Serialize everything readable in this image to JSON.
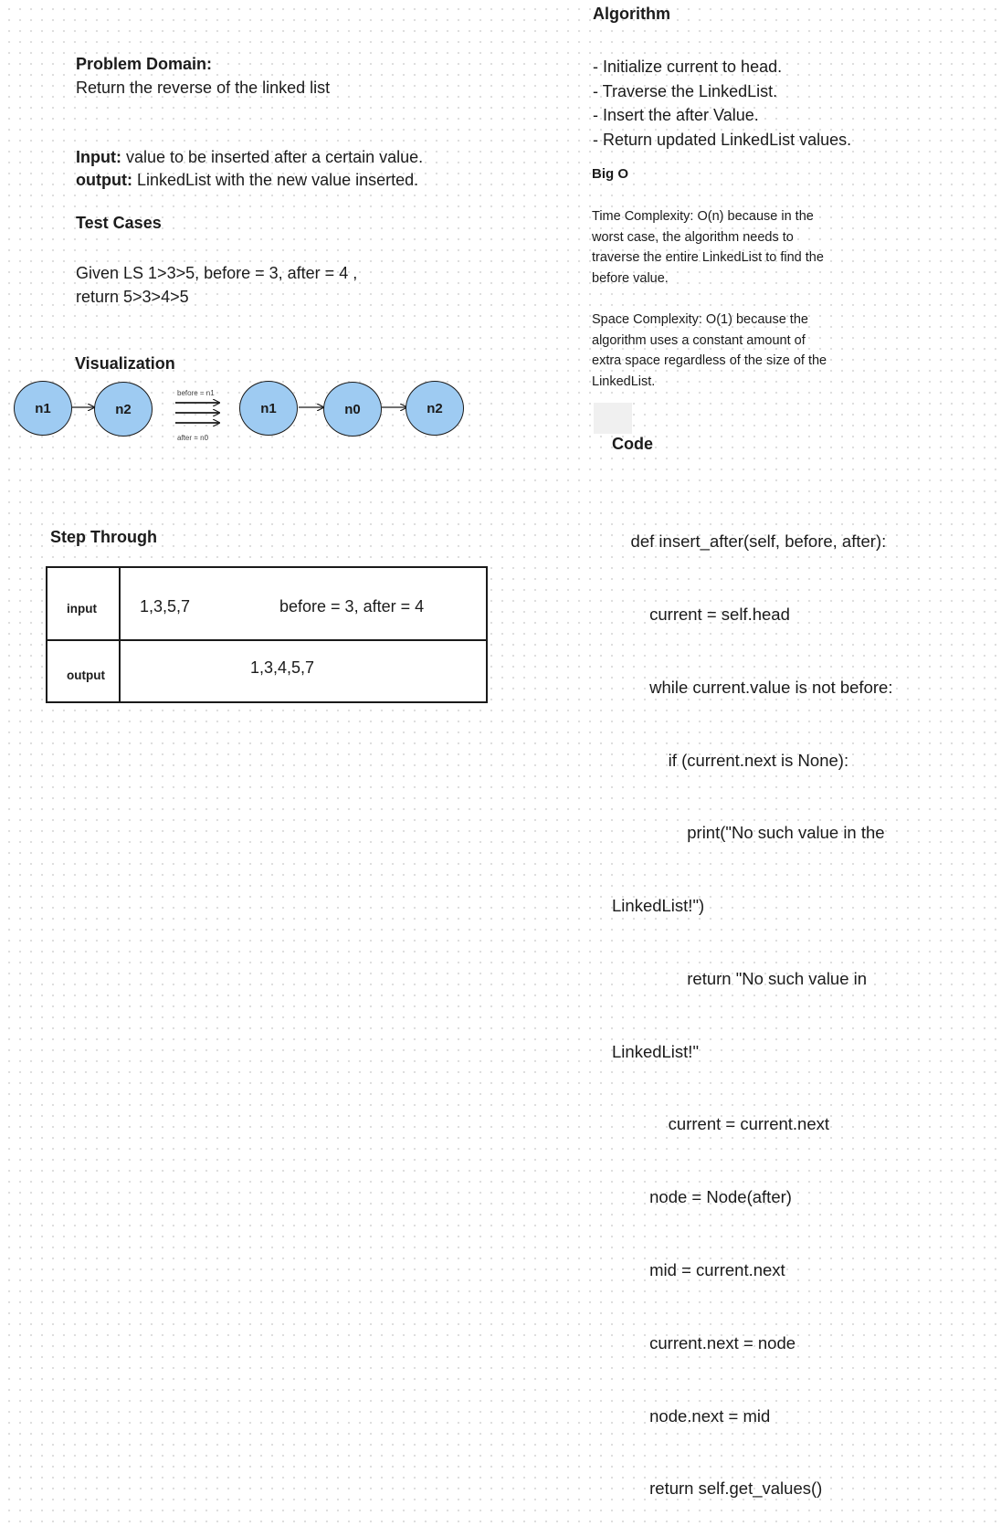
{
  "left": {
    "problem_domain_label": "Problem Domain:",
    "problem_domain_text": "Return the reverse of the linked list",
    "input_label": "Input:",
    "input_text": " value to be inserted after a certain value.",
    "output_label": "output:",
    "output_text": " LinkedList with the new value inserted.",
    "test_cases_heading": "Test Cases",
    "test_case_line1": "Given LS 1>3>5,  before = 3, after = 4  ,",
    "test_case_line2": "return 5>3>4>5",
    "visualization_heading": "Visualization",
    "step_through_heading": "Step Through"
  },
  "visualization": {
    "before_nodes": [
      "n1",
      "n2"
    ],
    "after_nodes": [
      "n1",
      "n0",
      "n2"
    ],
    "arrow_label_top": "before = n1",
    "arrow_label_bottom": "after = n0",
    "node_fill": "#9ecbf2"
  },
  "step_table": {
    "input_label": "input",
    "input_list": "1,3,5,7",
    "input_params": "before = 3, after = 4",
    "output_label": "output",
    "output_list": "1,3,4,5,7"
  },
  "right": {
    "algorithm_heading": "Algorithm",
    "algorithm_steps": [
      "- Initialize current to head.",
      "- Traverse the LinkedList.",
      "- Insert the after Value.",
      "- Return updated LinkedList values."
    ],
    "big_o_heading": "Big O",
    "time_complexity_lines": [
      "Time Complexity: O(n) because in the",
      "worst case, the algorithm needs to",
      "traverse the entire LinkedList to find the",
      "before value."
    ],
    "space_complexity_lines": [
      "Space Complexity: O(1) because the",
      "algorithm uses a constant amount of",
      "extra space regardless of the size of the",
      "LinkedList."
    ],
    "code_heading": "Code",
    "code_lines": [
      "    def insert_after(self, before, after):",
      "        current = self.head",
      "        while current.value is not before:",
      "            if (current.next is None):",
      "                print(\"No such value in the",
      "LinkedList!\")",
      "                return \"No such value in",
      "LinkedList!\"",
      "            current = current.next",
      "        node = Node(after)",
      "        mid = current.next",
      "        current.next = node",
      "        node.next = mid",
      "        return self.get_values()"
    ]
  }
}
